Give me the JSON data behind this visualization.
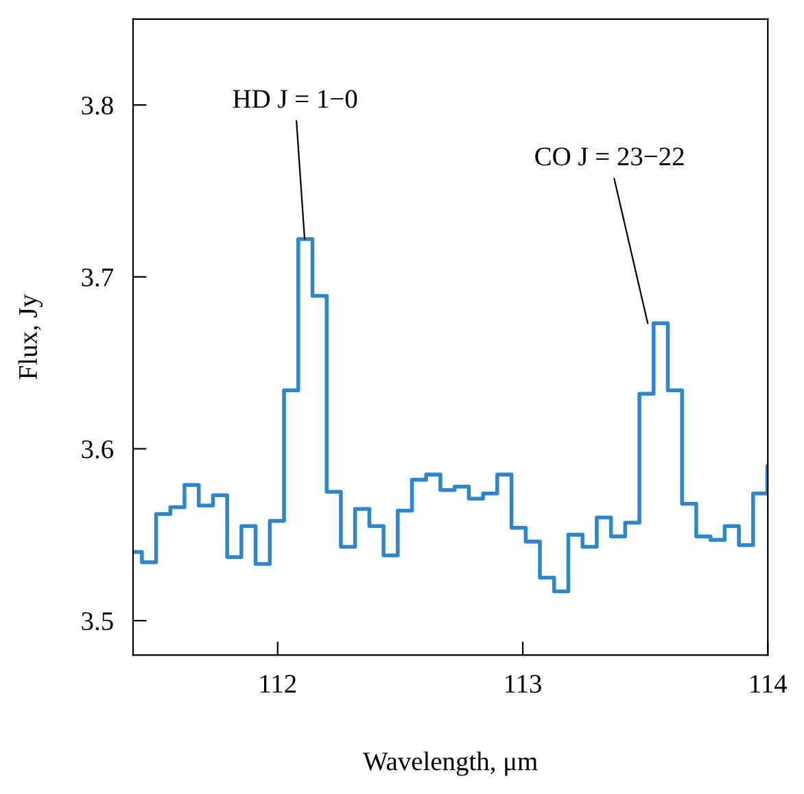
{
  "chart_data": {
    "type": "step",
    "xlabel": "Wavelength, μm",
    "ylabel": "Flux, Jy",
    "x": [
      111.41,
      111.446,
      111.504,
      111.562,
      111.62,
      111.678,
      111.736,
      111.794,
      111.852,
      111.91,
      111.968,
      112.026,
      112.084,
      112.142,
      112.2,
      112.258,
      112.316,
      112.374,
      112.432,
      112.49,
      112.548,
      112.606,
      112.664,
      112.722,
      112.78,
      112.838,
      112.896,
      112.954,
      113.012,
      113.07,
      113.128,
      113.186,
      113.244,
      113.302,
      113.36,
      113.418,
      113.476,
      113.534,
      113.592,
      113.65,
      113.708,
      113.766,
      113.824,
      113.882,
      113.94,
      113.998,
      114.0
    ],
    "series": [
      {
        "color": "#2f86c8",
        "values": [
          3.54,
          3.534,
          3.562,
          3.566,
          3.579,
          3.567,
          3.573,
          3.537,
          3.555,
          3.533,
          3.558,
          3.634,
          3.722,
          3.689,
          3.575,
          3.543,
          3.565,
          3.555,
          3.538,
          3.564,
          3.582,
          3.585,
          3.576,
          3.578,
          3.571,
          3.574,
          3.585,
          3.554,
          3.546,
          3.525,
          3.517,
          3.55,
          3.543,
          3.56,
          3.549,
          3.557,
          3.632,
          3.673,
          3.634,
          3.568,
          3.549,
          3.547,
          3.555,
          3.544,
          3.574,
          3.59,
          3.59
        ]
      }
    ],
    "xlim": [
      111.41,
      114.0
    ],
    "ylim": [
      3.48,
      3.85
    ],
    "xticks": [
      112,
      113,
      114
    ],
    "yticks": [
      3.5,
      3.6,
      3.7,
      3.8
    ],
    "annotations": [
      {
        "text": "HD J = 1−0",
        "x": 112.11,
        "y": 3.722
      },
      {
        "text": "CO J = 23−22",
        "x": 113.51,
        "y": 3.673
      }
    ],
    "grid": false,
    "legend": false
  }
}
